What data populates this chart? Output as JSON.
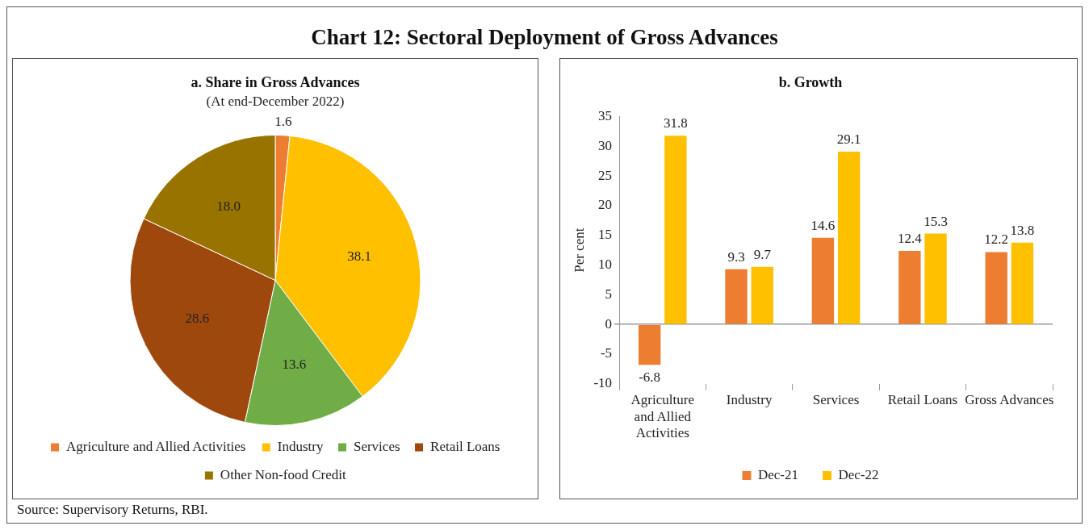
{
  "chart_data": [
    {
      "type": "other",
      "title": "Chart 12: Sectoral Deployment of Gross Advances",
      "annotations": [
        "Source: Supervisory Returns, RBI."
      ]
    },
    {
      "type": "pie",
      "title": "a. Share in Gross Advances",
      "subtitle": "(At end-December 2022)",
      "categories": [
        "Agriculture and Allied Activities",
        "Industry",
        "Services",
        "Retail Loans",
        "Other Non-food Credit"
      ],
      "values": [
        1.6,
        38.1,
        13.6,
        28.6,
        18.0
      ],
      "value_labels": [
        "1.6",
        "38.1",
        "13.6",
        "28.6",
        "18.0"
      ],
      "colors": [
        "#ed7d31",
        "#ffc000",
        "#70ad47",
        "#9e480e",
        "#997300"
      ],
      "legend": "bottom"
    },
    {
      "type": "bar",
      "title": "b. Growth",
      "ylabel": "Per cent",
      "categories": [
        "Agriculture and Allied Activities",
        "Industry",
        "Services",
        "Retail Loans",
        "Gross Advances"
      ],
      "series": [
        {
          "name": "Dec-21",
          "color": "#ed7d31",
          "values": [
            -6.8,
            9.3,
            14.6,
            12.4,
            12.2
          ],
          "value_labels": [
            "-6.8",
            "9.3",
            "14.6",
            "12.4",
            "12.2"
          ]
        },
        {
          "name": "Dec-22",
          "color": "#ffc000",
          "values": [
            31.8,
            9.7,
            29.1,
            15.3,
            13.8
          ],
          "value_labels": [
            "31.8",
            "9.7",
            "29.1",
            "15.3",
            "13.8"
          ]
        }
      ],
      "ylim": [
        -10,
        35
      ],
      "yticks": [
        -10,
        -5,
        0,
        5,
        10,
        15,
        20,
        25,
        30,
        35
      ],
      "legend": "bottom"
    }
  ]
}
